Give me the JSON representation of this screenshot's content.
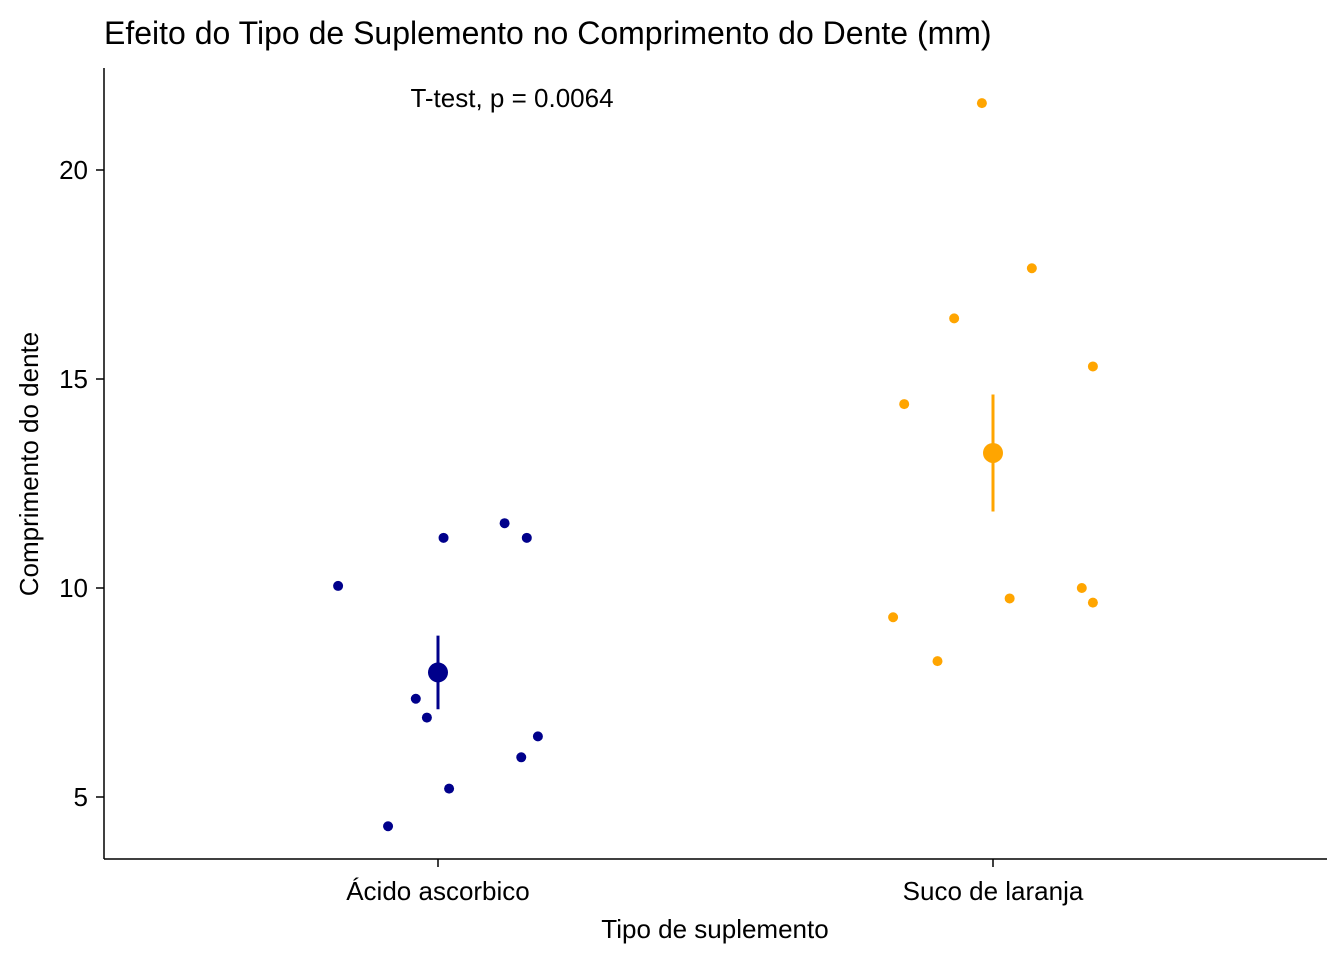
{
  "chart_data": {
    "type": "scatter",
    "title": "Efeito do Tipo de Suplemento no Comprimento do Dente (mm)",
    "xlabel": "Tipo de suplemento",
    "ylabel": "Comprimento do dente",
    "annotation": "T-test, p = 0.0064",
    "categories": [
      "Ácido ascorbico",
      "Suco de laranja"
    ],
    "ylim": [
      3.5,
      22.5
    ],
    "yticks": [
      5,
      10,
      15,
      20
    ],
    "series": [
      {
        "name": "Ácido ascorbico",
        "color": "#00008B",
        "points": [
          {
            "jitter": -0.18,
            "y": 10.05
          },
          {
            "jitter": 0.01,
            "y": 11.2
          },
          {
            "jitter": 0.12,
            "y": 11.55
          },
          {
            "jitter": 0.16,
            "y": 11.2
          },
          {
            "jitter": -0.04,
            "y": 7.35
          },
          {
            "jitter": -0.02,
            "y": 6.9
          },
          {
            "jitter": 0.18,
            "y": 6.45
          },
          {
            "jitter": 0.15,
            "y": 5.95
          },
          {
            "jitter": 0.02,
            "y": 5.2
          },
          {
            "jitter": -0.09,
            "y": 4.3
          }
        ],
        "mean": 7.98,
        "error": [
          7.1,
          8.86
        ]
      },
      {
        "name": "Suco de laranja",
        "color": "#FFA500",
        "points": [
          {
            "jitter": -0.02,
            "y": 21.6
          },
          {
            "jitter": 0.07,
            "y": 17.65
          },
          {
            "jitter": -0.07,
            "y": 16.45
          },
          {
            "jitter": 0.18,
            "y": 15.3
          },
          {
            "jitter": -0.16,
            "y": 14.4
          },
          {
            "jitter": 0.16,
            "y": 10.0
          },
          {
            "jitter": 0.03,
            "y": 9.75
          },
          {
            "jitter": 0.18,
            "y": 9.65
          },
          {
            "jitter": -0.18,
            "y": 9.3
          },
          {
            "jitter": -0.1,
            "y": 8.25
          }
        ],
        "mean": 13.23,
        "error": [
          11.83,
          14.63
        ]
      }
    ]
  }
}
